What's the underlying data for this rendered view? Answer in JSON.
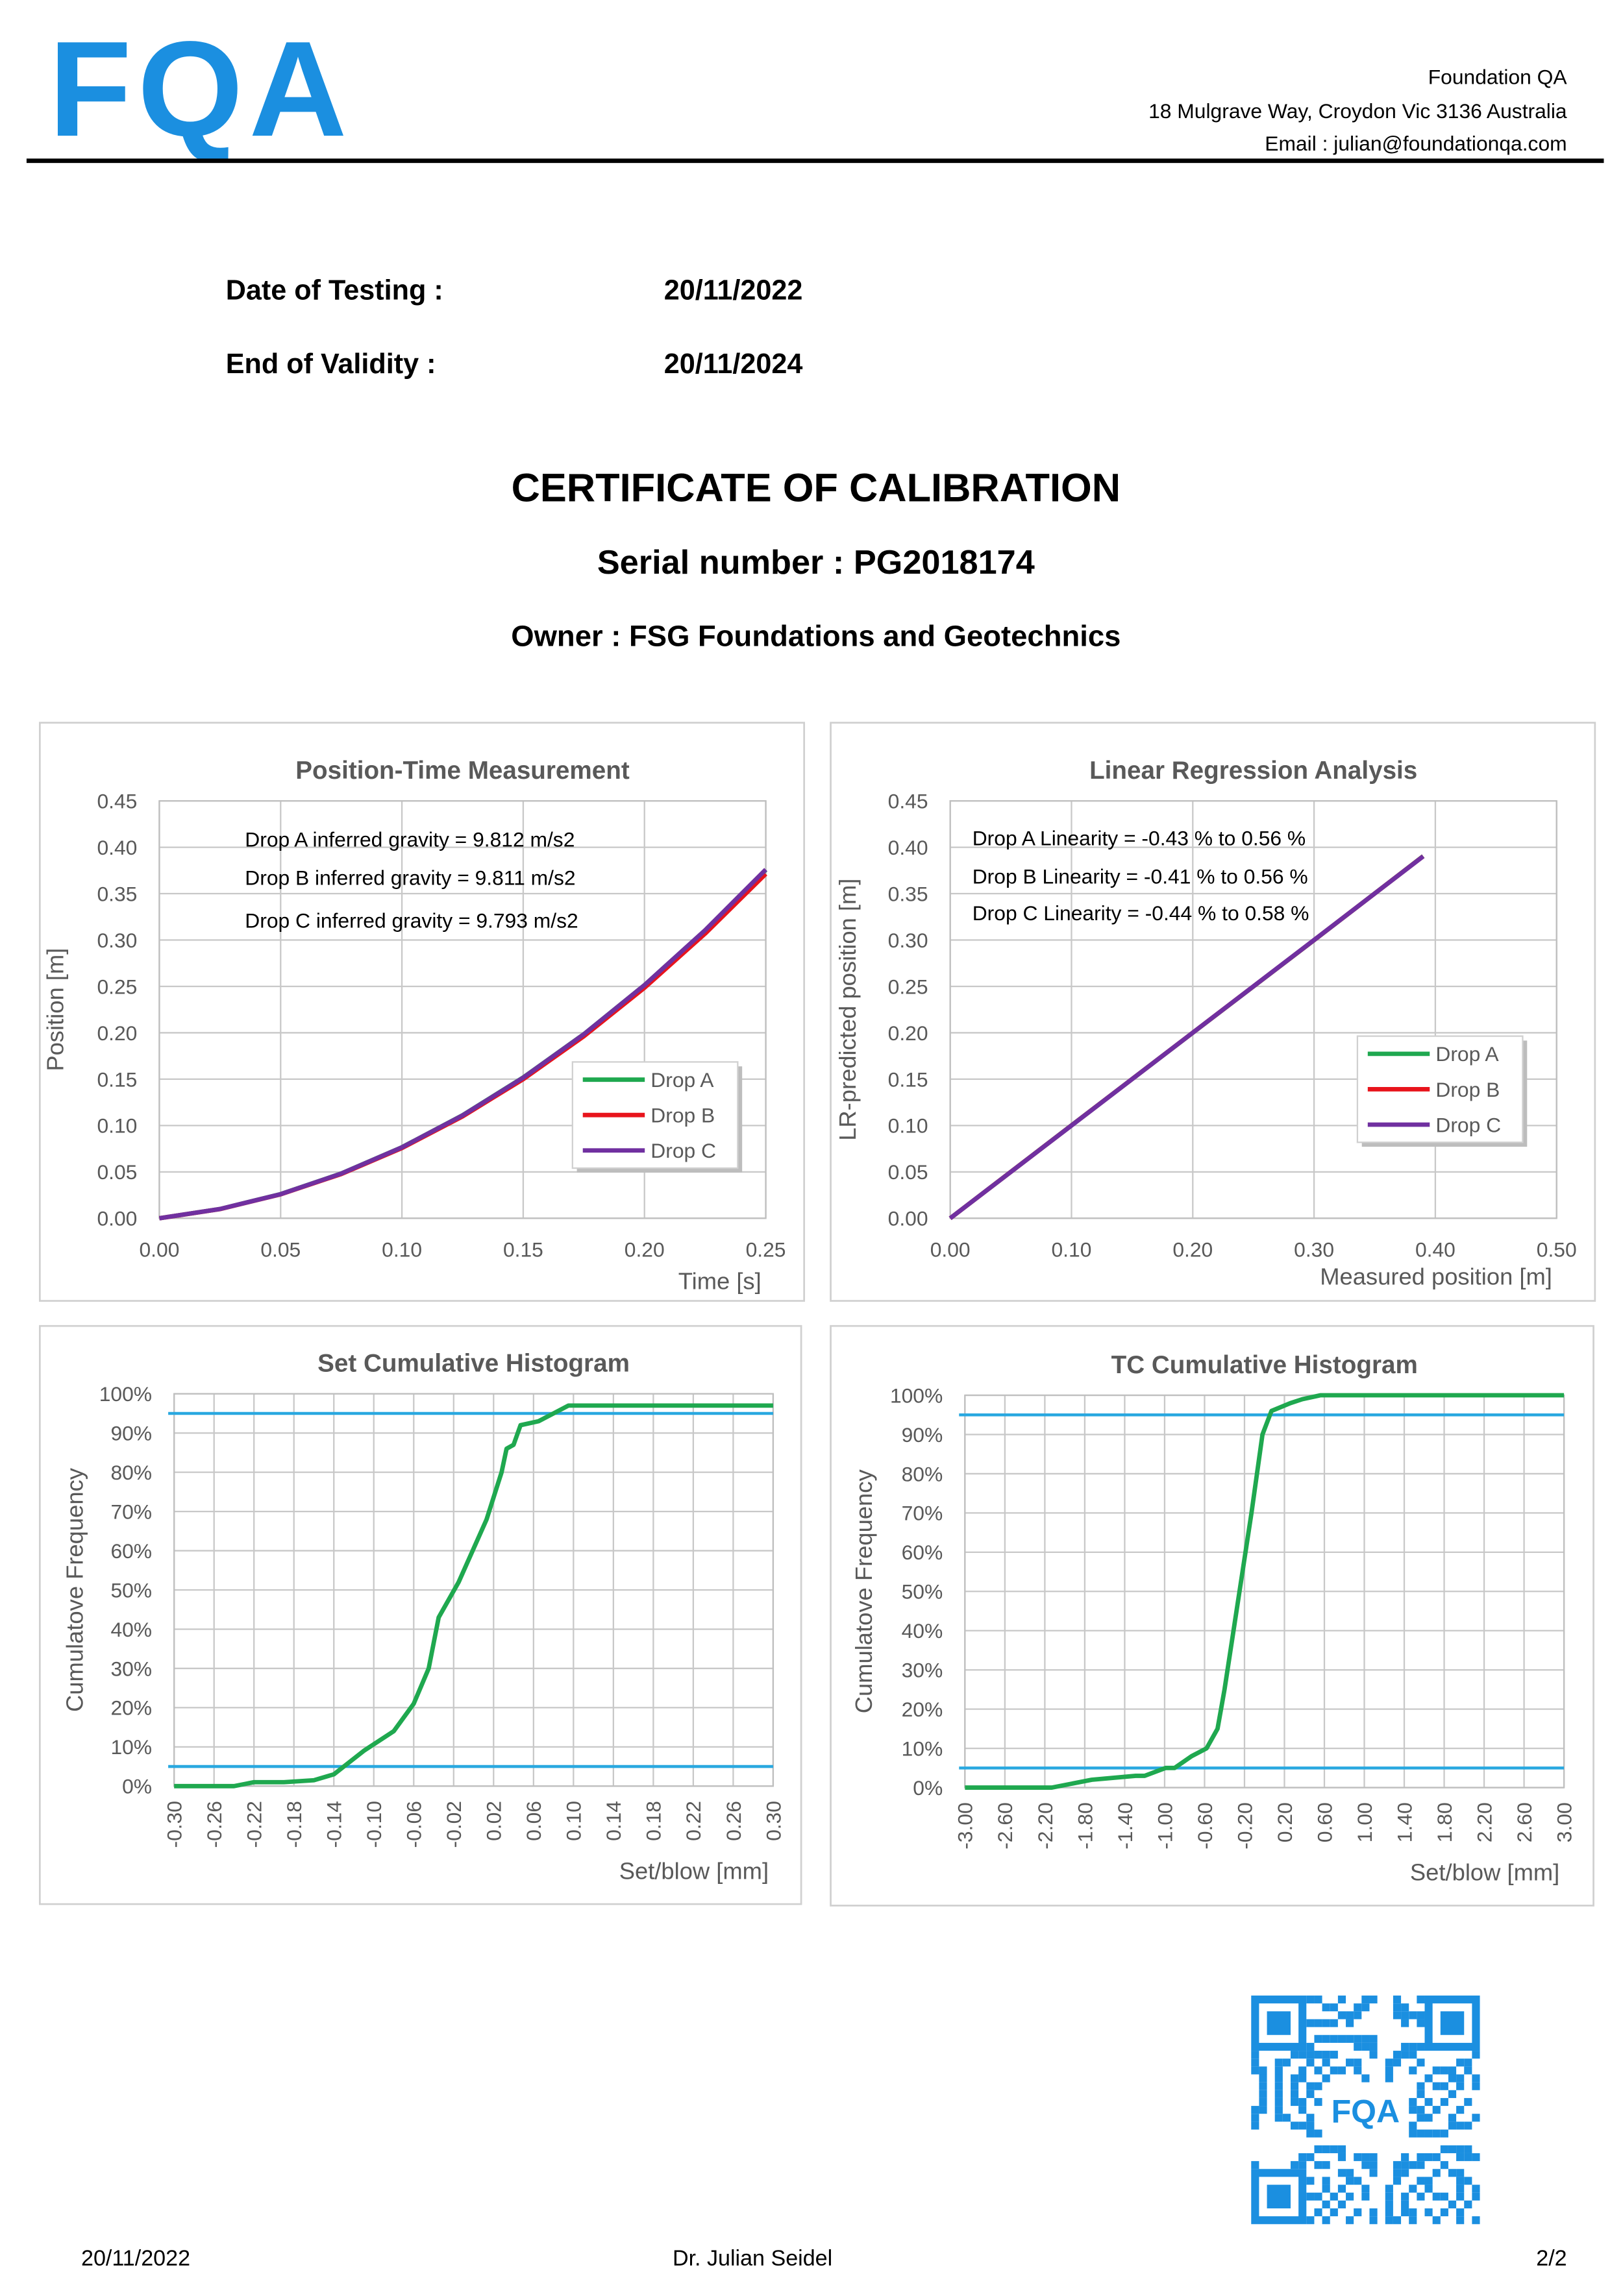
{
  "header": {
    "logo": "FQA",
    "company": "Foundation QA",
    "address": "18 Mulgrave Way, Croydon Vic 3136 Australia",
    "email": "Email : julian@foundationqa.com"
  },
  "fields": [
    {
      "label": "Date of Testing :",
      "value": "20/11/2022"
    },
    {
      "label": "End of Validity :",
      "value": "20/11/2024"
    }
  ],
  "title": "CERTIFICATE OF CALIBRATION",
  "serial": "Serial number : PG2018174",
  "owner": "Owner : FSG Foundations and Geotechnics",
  "chart_data": [
    {
      "type": "line",
      "title": "Position-Time Measurement",
      "xlabel": "Time [s]",
      "ylabel": "Position [m]",
      "annotations": [
        "Drop A inferred gravity = 9.812 m/s2",
        "Drop B inferred gravity = 9.811 m/s2",
        "Drop C inferred gravity = 9.793 m/s2"
      ],
      "x": [
        0,
        0.025,
        0.05,
        0.075,
        0.1,
        0.125,
        0.15,
        0.175,
        0.2,
        0.225,
        0.25
      ],
      "series": [
        {
          "name": "Drop A",
          "color": "#1fa84f",
          "values": [
            0,
            0.01,
            0.0261,
            0.0483,
            0.0766,
            0.1111,
            0.1518,
            0.1985,
            0.2514,
            0.3104,
            0.3756
          ]
        },
        {
          "name": "Drop B",
          "color": "#e8141c",
          "values": [
            0,
            0.0099,
            0.0258,
            0.0477,
            0.0757,
            0.1098,
            0.15,
            0.1962,
            0.2485,
            0.3069,
            0.3713
          ]
        },
        {
          "name": "Drop C",
          "color": "#7030a0",
          "values": [
            0,
            0.01,
            0.026,
            0.0482,
            0.0765,
            0.1109,
            0.1516,
            0.1984,
            0.2514,
            0.3106,
            0.376
          ]
        }
      ],
      "xlim": [
        0,
        0.25
      ],
      "xticks": [
        {
          "value": 0,
          "label": "0.00"
        },
        {
          "value": 0.05,
          "label": "0.05"
        },
        {
          "value": 0.1,
          "label": "0.10"
        },
        {
          "value": 0.15,
          "label": "0.15"
        },
        {
          "value": 0.2,
          "label": "0.20"
        },
        {
          "value": 0.25,
          "label": "0.25"
        }
      ],
      "ylim": [
        0,
        0.45
      ],
      "yticks": [
        {
          "value": 0,
          "label": "0.00"
        },
        {
          "value": 0.05,
          "label": "0.05"
        },
        {
          "value": 0.1,
          "label": "0.10"
        },
        {
          "value": 0.15,
          "label": "0.15"
        },
        {
          "value": 0.2,
          "label": "0.20"
        },
        {
          "value": 0.25,
          "label": "0.25"
        },
        {
          "value": 0.3,
          "label": "0.30"
        },
        {
          "value": 0.35,
          "label": "0.35"
        },
        {
          "value": 0.4,
          "label": "0.40"
        },
        {
          "value": 0.45,
          "label": "0.45"
        }
      ],
      "grid": true,
      "legend": "lower right"
    },
    {
      "type": "line",
      "title": "Linear Regression Analysis",
      "xlabel": "Measured position [m]",
      "ylabel": "LR-predicted position [m]",
      "annotations": [
        "Drop A Linearity = -0.43 % to 0.56 %",
        "Drop B Linearity = -0.41 % to 0.56 %",
        "Drop C Linearity = -0.44 % to 0.58 %"
      ],
      "x": [
        0,
        0.1,
        0.2,
        0.3,
        0.39
      ],
      "series": [
        {
          "name": "Drop A",
          "color": "#1fa84f",
          "values": [
            0,
            0.1002,
            0.2,
            0.2998,
            0.3905
          ]
        },
        {
          "name": "Drop B",
          "color": "#e8141c",
          "values": [
            0,
            0.1001,
            0.2001,
            0.2999,
            0.3903
          ]
        },
        {
          "name": "Drop C",
          "color": "#7030a0",
          "values": [
            0,
            0.1,
            0.2001,
            0.3,
            0.3902
          ]
        }
      ],
      "xlim": [
        0,
        0.5
      ],
      "xticks": [
        {
          "value": 0,
          "label": "0.00"
        },
        {
          "value": 0.1,
          "label": "0.10"
        },
        {
          "value": 0.2,
          "label": "0.20"
        },
        {
          "value": 0.3,
          "label": "0.30"
        },
        {
          "value": 0.4,
          "label": "0.40"
        },
        {
          "value": 0.5,
          "label": "0.50"
        }
      ],
      "ylim": [
        0,
        0.45
      ],
      "yticks": [
        {
          "value": 0,
          "label": "0.00"
        },
        {
          "value": 0.05,
          "label": "0.05"
        },
        {
          "value": 0.1,
          "label": "0.10"
        },
        {
          "value": 0.15,
          "label": "0.15"
        },
        {
          "value": 0.2,
          "label": "0.20"
        },
        {
          "value": 0.25,
          "label": "0.25"
        },
        {
          "value": 0.3,
          "label": "0.30"
        },
        {
          "value": 0.35,
          "label": "0.35"
        },
        {
          "value": 0.4,
          "label": "0.40"
        },
        {
          "value": 0.45,
          "label": "0.45"
        }
      ],
      "grid": true,
      "legend": "center right"
    },
    {
      "type": "line",
      "title": "Set Cumulative Histogram",
      "xlabel": "Set/blow [mm]",
      "ylabel": "Cumulatove Frequency",
      "x": [
        -0.3,
        -0.24,
        -0.22,
        -0.19,
        -0.16,
        -0.14,
        -0.11,
        -0.08,
        -0.06,
        -0.045,
        -0.035,
        -0.015,
        0.013,
        0.028,
        0.033,
        0.04,
        0.047,
        0.065,
        0.08,
        0.095,
        0.3
      ],
      "series": [
        {
          "color": "#1fa84f",
          "values": [
            0,
            0,
            1,
            1,
            1.5,
            3,
            9,
            14,
            21,
            30,
            43,
            52,
            68,
            80,
            86,
            87,
            92,
            93,
            95,
            97,
            97
          ]
        }
      ],
      "reference_lines": [
        5,
        95
      ],
      "reference_color": "#29a8e0",
      "xlim": [
        -0.3,
        0.3
      ],
      "xticks": [
        {
          "value": -0.3,
          "label": "-0.30"
        },
        {
          "value": -0.26,
          "label": "-0.26"
        },
        {
          "value": -0.22,
          "label": "-0.22"
        },
        {
          "value": -0.18,
          "label": "-0.18"
        },
        {
          "value": -0.14,
          "label": "-0.14"
        },
        {
          "value": -0.1,
          "label": "-0.10"
        },
        {
          "value": -0.06,
          "label": "-0.06"
        },
        {
          "value": -0.02,
          "label": "-0.02"
        },
        {
          "value": 0.02,
          "label": "0.02"
        },
        {
          "value": 0.06,
          "label": "0.06"
        },
        {
          "value": 0.1,
          "label": "0.10"
        },
        {
          "value": 0.14,
          "label": "0.14"
        },
        {
          "value": 0.18,
          "label": "0.18"
        },
        {
          "value": 0.22,
          "label": "0.22"
        },
        {
          "value": 0.26,
          "label": "0.26"
        },
        {
          "value": 0.3,
          "label": "0.30"
        }
      ],
      "xtick_rotation": -90,
      "ylim": [
        0,
        100
      ],
      "yticks": [
        {
          "value": 0,
          "label": "0%"
        },
        {
          "value": 10,
          "label": "10%"
        },
        {
          "value": 20,
          "label": "20%"
        },
        {
          "value": 30,
          "label": "30%"
        },
        {
          "value": 40,
          "label": "40%"
        },
        {
          "value": 50,
          "label": "50%"
        },
        {
          "value": 60,
          "label": "60%"
        },
        {
          "value": 70,
          "label": "70%"
        },
        {
          "value": 80,
          "label": "80%"
        },
        {
          "value": 90,
          "label": "90%"
        },
        {
          "value": 100,
          "label": "100%"
        }
      ],
      "grid": true
    },
    {
      "type": "line",
      "title": "TC Cumulative Histogram",
      "xlabel": "Set/blow [mm]",
      "ylabel": "Cumulatove Frequency",
      "x": [
        -3,
        -2.13,
        -1.73,
        -1.29,
        -1.2,
        -0.99,
        -0.9,
        -0.73,
        -0.58,
        -0.47,
        -0.4,
        -0.28,
        -0.13,
        -0.02,
        0.07,
        0.26,
        0.38,
        0.56,
        3
      ],
      "series": [
        {
          "color": "#1fa84f",
          "values": [
            0,
            0,
            2,
            3,
            3,
            5,
            5,
            8,
            10,
            15,
            25,
            45,
            70,
            90,
            96,
            98,
            99,
            100,
            100
          ]
        }
      ],
      "reference_lines": [
        5,
        95
      ],
      "reference_color": "#29a8e0",
      "xlim": [
        -3,
        3
      ],
      "xticks": [
        {
          "value": -3,
          "label": "-3.00"
        },
        {
          "value": -2.6,
          "label": "-2.60"
        },
        {
          "value": -2.2,
          "label": "-2.20"
        },
        {
          "value": -1.8,
          "label": "-1.80"
        },
        {
          "value": -1.4,
          "label": "-1.40"
        },
        {
          "value": -1,
          "label": "-1.00"
        },
        {
          "value": -0.6,
          "label": "-0.60"
        },
        {
          "value": -0.2,
          "label": "-0.20"
        },
        {
          "value": 0.2,
          "label": "0.20"
        },
        {
          "value": 0.6,
          "label": "0.60"
        },
        {
          "value": 1,
          "label": "1.00"
        },
        {
          "value": 1.4,
          "label": "1.40"
        },
        {
          "value": 1.8,
          "label": "1.80"
        },
        {
          "value": 2.2,
          "label": "2.20"
        },
        {
          "value": 2.6,
          "label": "2.60"
        },
        {
          "value": 3,
          "label": "3.00"
        }
      ],
      "xtick_rotation": -90,
      "ylim": [
        0,
        100
      ],
      "yticks": [
        {
          "value": 0,
          "label": "0%"
        },
        {
          "value": 10,
          "label": "10%"
        },
        {
          "value": 20,
          "label": "20%"
        },
        {
          "value": 30,
          "label": "30%"
        },
        {
          "value": 40,
          "label": "40%"
        },
        {
          "value": 50,
          "label": "50%"
        },
        {
          "value": 60,
          "label": "60%"
        },
        {
          "value": 70,
          "label": "70%"
        },
        {
          "value": 80,
          "label": "80%"
        },
        {
          "value": 90,
          "label": "90%"
        },
        {
          "value": 100,
          "label": "100%"
        }
      ],
      "grid": true
    }
  ],
  "footer": {
    "date": "20/11/2022",
    "name": "Dr. Julian Seidel",
    "page": "2/2"
  }
}
